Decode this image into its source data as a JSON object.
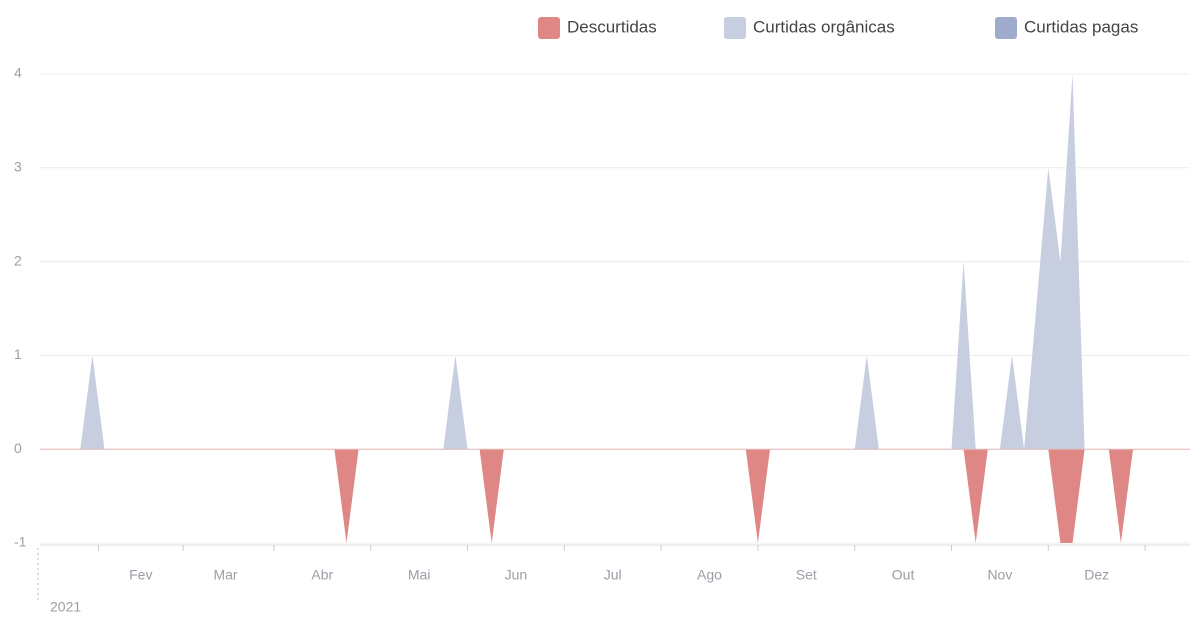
{
  "chart_data": {
    "type": "area",
    "year_label": "2021",
    "categories": [
      null,
      null,
      null,
      null,
      null,
      null,
      null,
      null,
      "Fev",
      null,
      null,
      null,
      null,
      null,
      null,
      "Mar",
      null,
      null,
      null,
      null,
      null,
      null,
      null,
      "Abr",
      null,
      null,
      null,
      null,
      null,
      null,
      null,
      "Mai",
      null,
      null,
      null,
      null,
      null,
      null,
      null,
      "Jun",
      null,
      null,
      null,
      null,
      null,
      null,
      null,
      "Jul",
      null,
      null,
      null,
      null,
      null,
      null,
      null,
      "Ago",
      null,
      null,
      null,
      null,
      null,
      null,
      null,
      "Set",
      null,
      null,
      null,
      null,
      null,
      null,
      null,
      "Out",
      null,
      null,
      null,
      null,
      null,
      null,
      null,
      "Nov",
      null,
      null,
      null,
      null,
      null,
      null,
      null,
      "Dez",
      null,
      null,
      null,
      null,
      null,
      null,
      null
    ],
    "series": [
      {
        "name": "Descurtidas",
        "color": "#de8785",
        "values": [
          0,
          0,
          0,
          0,
          0,
          0,
          0,
          0,
          0,
          0,
          0,
          0,
          0,
          0,
          0,
          0,
          0,
          0,
          0,
          0,
          0,
          0,
          0,
          0,
          0,
          -1,
          0,
          0,
          0,
          0,
          0,
          0,
          0,
          0,
          0,
          0,
          0,
          -1,
          0,
          0,
          0,
          0,
          0,
          0,
          0,
          0,
          0,
          0,
          0,
          0,
          0,
          0,
          0,
          0,
          0,
          0,
          0,
          0,
          0,
          -1,
          0,
          0,
          0,
          0,
          0,
          0,
          0,
          0,
          0,
          0,
          0,
          0,
          0,
          0,
          0,
          0,
          0,
          -1,
          0,
          0,
          0,
          0,
          0,
          0,
          -1,
          -1,
          0,
          0,
          0,
          -1,
          0,
          0,
          0,
          0,
          0
        ]
      },
      {
        "name": "Curtidas orgânicas",
        "color": "#c6cee0",
        "values": [
          0,
          0,
          0,
          0,
          1,
          0,
          0,
          0,
          0,
          0,
          0,
          0,
          0,
          0,
          0,
          0,
          0,
          0,
          0,
          0,
          0,
          0,
          0,
          0,
          0,
          0,
          0,
          0,
          0,
          0,
          0,
          0,
          0,
          0,
          1,
          0,
          0,
          0,
          0,
          0,
          0,
          0,
          0,
          0,
          0,
          0,
          0,
          0,
          0,
          0,
          0,
          0,
          0,
          0,
          0,
          0,
          0,
          0,
          0,
          0,
          0,
          0,
          0,
          0,
          0,
          0,
          0,
          0,
          1,
          0,
          0,
          0,
          0,
          0,
          0,
          0,
          2,
          0,
          0,
          0,
          1,
          0,
          1.5,
          3,
          2,
          4,
          0,
          0,
          0,
          0,
          0,
          0,
          0,
          0,
          0
        ]
      },
      {
        "name": "Curtidas pagas",
        "color": "#9eabcd",
        "values": [
          0,
          0,
          0,
          0,
          0,
          0,
          0,
          0,
          0,
          0,
          0,
          0,
          0,
          0,
          0,
          0,
          0,
          0,
          0,
          0,
          0,
          0,
          0,
          0,
          0,
          0,
          0,
          0,
          0,
          0,
          0,
          0,
          0,
          0,
          0,
          0,
          0,
          0,
          0,
          0,
          0,
          0,
          0,
          0,
          0,
          0,
          0,
          0,
          0,
          0,
          0,
          0,
          0,
          0,
          0,
          0,
          0,
          0,
          0,
          0,
          0,
          0,
          0,
          0,
          0,
          0,
          0,
          0,
          0,
          0,
          0,
          0,
          0,
          0,
          0,
          0,
          0,
          0,
          0,
          0,
          0,
          0,
          0,
          0,
          0,
          0,
          0,
          0,
          0,
          0,
          0,
          0,
          0,
          0,
          0
        ]
      }
    ],
    "ylim": [
      -1,
      4
    ],
    "yticks": [
      -1,
      0,
      1,
      2,
      3,
      4
    ],
    "grid": true,
    "legend": "top-right"
  }
}
